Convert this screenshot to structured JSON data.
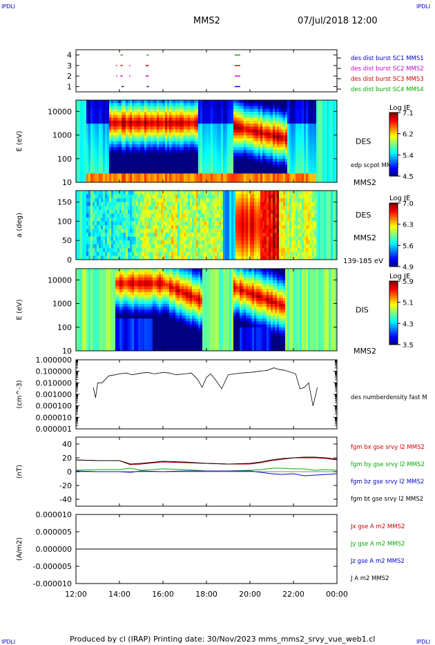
{
  "corner_marks": {
    "top_left": "IPDLI",
    "top_right": "IPDLI",
    "bottom_left": "IPDLI",
    "bottom_right": "IPDLI"
  },
  "header": {
    "spacecraft": "MMS2",
    "datetime": "07/Jul/2018 12:00"
  },
  "footer": {
    "text": "Produced by cl (IRAP)   Printing date: 30/Nov/2023   mms_mms2_srvy_vue_web1.cl"
  },
  "chart_data": [
    {
      "type": "scatter",
      "id": "burst",
      "ylim": [
        0.5,
        4.5
      ],
      "yticks": [
        "1",
        "2",
        "3",
        "4"
      ],
      "legend": [
        {
          "label": "des dist burst SC1 MMS1",
          "color": "#0000cc"
        },
        {
          "label": "des dist burst SC2 MMS2",
          "color": "#cc00cc"
        },
        {
          "label": "des dist burst SC3 MMS3",
          "color": "#cc0000"
        },
        {
          "label": "des dist burst SC4 MMS4",
          "color": "#00aa00"
        }
      ],
      "segments": [
        {
          "sc": 4,
          "color": "#00aa00",
          "x": [
            [
              14.05,
              14.15
            ],
            [
              15.25,
              15.35
            ],
            [
              19.3,
              19.55
            ]
          ]
        },
        {
          "sc": 3,
          "color": "#cc0000",
          "x": [
            [
              13.85,
              13.88
            ],
            [
              14.05,
              14.15
            ],
            [
              14.45,
              14.48
            ],
            [
              15.2,
              15.35
            ],
            [
              19.3,
              19.55
            ]
          ]
        },
        {
          "sc": 2,
          "color": "#cc00cc",
          "x": [
            [
              13.85,
              13.88
            ],
            [
              14.05,
              14.15
            ],
            [
              14.45,
              14.48
            ],
            [
              15.2,
              15.35
            ],
            [
              19.3,
              19.55
            ]
          ]
        },
        {
          "sc": 1,
          "color": "#0000cc",
          "x": [
            [
              14.1,
              14.2
            ],
            [
              15.25,
              15.35
            ],
            [
              19.3,
              19.55
            ]
          ]
        }
      ]
    },
    {
      "type": "heatmap",
      "id": "des_energy",
      "ylabel": "E (eV)",
      "yscale": "log",
      "ylim": [
        10,
        30000
      ],
      "yticks": [
        "10",
        "100",
        "1000",
        "10000"
      ],
      "instrument": "DES",
      "sc_label": "MMS2",
      "overlay_label": "edp scpot MMS2",
      "colorbar": {
        "title": "Log JE",
        "ticks": [
          "7.1",
          "6.2",
          "5.4",
          "4.5"
        ],
        "min": 4.5,
        "max": 7.1
      },
      "data_start": 12.5,
      "data_end": 23.0
    },
    {
      "type": "heatmap",
      "id": "des_pitch",
      "ylabel": "a (deg)",
      "ylim": [
        0,
        180
      ],
      "yticks": [
        "0",
        "50",
        "100",
        "150"
      ],
      "instrument": "DES",
      "sc_label": "MMS2",
      "energy_range": "139-185 eV",
      "colorbar": {
        "title": "Log JE",
        "ticks": [
          "7.0",
          "6.3",
          "5.6",
          "4.9"
        ],
        "min": 4.9,
        "max": 7.0
      },
      "data_start": 12.5,
      "data_end": 23.0
    },
    {
      "type": "heatmap",
      "id": "dis_energy",
      "ylabel": "E (eV)",
      "yscale": "log",
      "ylim": [
        10,
        30000
      ],
      "yticks": [
        "10",
        "100",
        "1000",
        "10000"
      ],
      "instrument": "DIS",
      "sc_label": "MMS2",
      "colorbar": {
        "title": "Log JE",
        "ticks": [
          "5.9",
          "5.1",
          "4.3",
          "3.5"
        ],
        "min": 3.5,
        "max": 5.9
      },
      "data_start": 12.5,
      "data_end": 23.0
    },
    {
      "type": "line",
      "id": "density",
      "ylabel": "(cm^-3)",
      "yscale": "log",
      "ylim": [
        1e-06,
        1.0
      ],
      "yticks": [
        "1.000000",
        "0.100000",
        "0.010000",
        "0.001000",
        "0.000100",
        "0.000010",
        "0.000001"
      ],
      "legend": [
        {
          "label": "des numberdensity fast M",
          "color": "#000000"
        }
      ],
      "x": [
        12.8,
        12.9,
        13.0,
        13.2,
        13.5,
        13.8,
        14.0,
        14.3,
        14.6,
        15.0,
        15.3,
        15.6,
        16.0,
        16.3,
        16.6,
        17.0,
        17.3,
        17.6,
        17.8,
        18.0,
        18.2,
        18.4,
        18.7,
        19.0,
        19.3,
        19.6,
        20.0,
        20.4,
        20.8,
        21.1,
        21.3,
        21.6,
        21.9,
        22.1,
        22.3,
        22.5,
        22.7,
        22.9,
        23.1
      ],
      "y": [
        0.004,
        0.0005,
        0.01,
        0.01,
        0.04,
        0.05,
        0.06,
        0.07,
        0.05,
        0.07,
        0.08,
        0.06,
        0.08,
        0.07,
        0.05,
        0.06,
        0.07,
        0.02,
        0.004,
        0.03,
        0.06,
        0.02,
        0.003,
        0.05,
        0.06,
        0.07,
        0.08,
        0.1,
        0.12,
        0.2,
        0.15,
        0.12,
        0.08,
        0.06,
        0.003,
        0.004,
        0.01,
        0.0001,
        0.004
      ]
    },
    {
      "type": "line",
      "id": "fgm",
      "ylabel": "(nT)",
      "ylim": [
        -50,
        50
      ],
      "yticks": [
        "40",
        "20",
        "0",
        "-20",
        "-40"
      ],
      "series": [
        {
          "name": "fgm bx gse srvy l2 MMS2",
          "color": "#cc0000",
          "x": [
            12.0,
            13.0,
            14.0,
            14.5,
            15.0,
            16.0,
            17.0,
            18.0,
            19.0,
            20.0,
            20.5,
            21.0,
            21.5,
            22.0,
            22.5,
            23.0,
            23.5,
            24.0
          ],
          "y": [
            17,
            16,
            16,
            10,
            11,
            14,
            13,
            12,
            11,
            11,
            13,
            16,
            18,
            20,
            20,
            20,
            19,
            17
          ]
        },
        {
          "name": "fgm by gse srvy l2 MMS2",
          "color": "#00aa00",
          "x": [
            12.0,
            13.0,
            14.0,
            14.5,
            15.0,
            16.0,
            17.0,
            18.0,
            19.0,
            20.0,
            20.5,
            21.0,
            21.5,
            22.0,
            22.5,
            23.0,
            23.5,
            24.0
          ],
          "y": [
            2,
            3,
            3,
            5,
            2,
            4,
            3,
            1,
            1,
            2,
            3,
            5,
            5,
            4,
            4,
            2,
            3,
            2
          ]
        },
        {
          "name": "fgm bz gse srvy l2 MMS2",
          "color": "#0000cc",
          "x": [
            12.0,
            13.0,
            14.0,
            14.5,
            15.0,
            16.0,
            17.0,
            18.0,
            19.0,
            20.0,
            20.5,
            21.0,
            21.5,
            22.0,
            22.5,
            23.0,
            23.5,
            24.0
          ],
          "y": [
            1,
            0,
            0,
            -1,
            1,
            0,
            1,
            1,
            1,
            1,
            -1,
            -3,
            -4,
            -3,
            -6,
            -5,
            -4,
            -3
          ]
        },
        {
          "name": "fgm bt gse srvy l2 MMS2",
          "color": "#000000",
          "x": [
            12.0,
            13.0,
            14.0,
            14.5,
            15.0,
            16.0,
            17.0,
            18.0,
            19.0,
            20.0,
            20.5,
            21.0,
            21.5,
            22.0,
            22.5,
            23.0,
            23.5,
            24.0
          ],
          "y": [
            17,
            16,
            16,
            11,
            12,
            15,
            14,
            12,
            11,
            12,
            14,
            17,
            19,
            20,
            21,
            21,
            20,
            18
          ]
        }
      ]
    },
    {
      "type": "line",
      "id": "current",
      "ylabel": "(A/m2)",
      "ylim": [
        -1e-05,
        1e-05
      ],
      "yticks": [
        "0.000010",
        "0.000005",
        "0.000000",
        "-0.000005",
        "-0.000010"
      ],
      "series": [
        {
          "name": "Jx gse A m2 MMS2",
          "color": "#cc0000"
        },
        {
          "name": "Jy gse A m2 MMS2",
          "color": "#00aa00"
        },
        {
          "name": "Jz gse A m2 MMS2",
          "color": "#0000cc"
        },
        {
          "name": "J A m2 MMS2",
          "color": "#000000"
        }
      ],
      "x": [
        12.0,
        24.0
      ],
      "y": [
        0.0,
        0.0
      ]
    }
  ],
  "x_axis": {
    "xlim": [
      12.0,
      24.0
    ],
    "tick_values": [
      12,
      14,
      16,
      18,
      20,
      22,
      24
    ],
    "tick_labels": [
      "12:00",
      "14:00",
      "16:00",
      "18:00",
      "20:00",
      "22:00",
      "00:00"
    ]
  }
}
